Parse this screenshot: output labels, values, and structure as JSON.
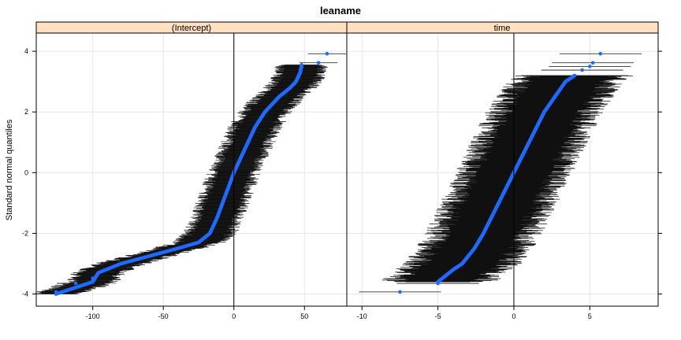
{
  "chart_data": {
    "type": "scatter",
    "title": "leaname",
    "ylabel": "Standard normal quantiles",
    "xlabel": "",
    "ylim": [
      -4.4,
      4.6
    ],
    "y_ticks": [
      -4,
      -2,
      0,
      2,
      4
    ],
    "grid": true,
    "point_color": "#1f6bff",
    "interval_color": "#000000",
    "strip_color": "#ffe0c2",
    "panels": [
      {
        "name": "(Intercept)",
        "xlim": [
          -140,
          80
        ],
        "x_ticks": [
          -100,
          -50,
          0,
          50
        ],
        "halfwidth": 15,
        "quantile_curve": [
          [
            -4.0,
            -126
          ],
          [
            -3.6,
            -100
          ],
          [
            -3.3,
            -96
          ],
          [
            -3.0,
            -80
          ],
          [
            -2.75,
            -60
          ],
          [
            -2.5,
            -40
          ],
          [
            -2.3,
            -25
          ],
          [
            -2.0,
            -17
          ],
          [
            -1.5,
            -12
          ],
          [
            -1.0,
            -8
          ],
          [
            -0.5,
            -4
          ],
          [
            0.0,
            0
          ],
          [
            0.5,
            5
          ],
          [
            1.0,
            10
          ],
          [
            1.5,
            15
          ],
          [
            2.0,
            22
          ],
          [
            2.5,
            32
          ],
          [
            2.8,
            40
          ],
          [
            3.0,
            44
          ],
          [
            3.3,
            47
          ],
          [
            3.55,
            48
          ]
        ],
        "outliers": [
          {
            "x": -126,
            "y": -3.93
          },
          {
            "x": -112,
            "y": -3.65
          },
          {
            "x": -100,
            "y": -3.48
          },
          {
            "x": 48,
            "y": 3.48
          },
          {
            "x": 60,
            "y": 3.62
          },
          {
            "x": 66,
            "y": 3.92
          }
        ]
      },
      {
        "name": "time",
        "xlim": [
          -11,
          9.5
        ],
        "x_ticks": [
          -10,
          -5,
          0,
          5
        ],
        "halfwidth": 3,
        "quantile_curve": [
          [
            -3.6,
            -5.0
          ],
          [
            -3.2,
            -4.0
          ],
          [
            -3.0,
            -3.4
          ],
          [
            -2.5,
            -2.6
          ],
          [
            -2.0,
            -2.0
          ],
          [
            -1.5,
            -1.5
          ],
          [
            -1.0,
            -1.0
          ],
          [
            -0.5,
            -0.5
          ],
          [
            0.0,
            0.0
          ],
          [
            0.5,
            0.5
          ],
          [
            1.0,
            1.0
          ],
          [
            1.5,
            1.5
          ],
          [
            2.0,
            2.0
          ],
          [
            2.5,
            2.7
          ],
          [
            3.0,
            3.4
          ],
          [
            3.2,
            4.0
          ]
        ],
        "outliers": [
          {
            "x": -7.5,
            "y": -3.93
          },
          {
            "x": -5.0,
            "y": -3.65
          },
          {
            "x": 4.5,
            "y": 3.38
          },
          {
            "x": 5.0,
            "y": 3.5
          },
          {
            "x": 5.2,
            "y": 3.62
          },
          {
            "x": 5.7,
            "y": 3.92
          }
        ]
      }
    ]
  }
}
